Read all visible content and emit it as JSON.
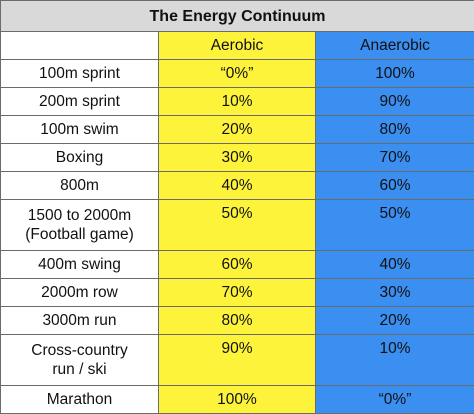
{
  "title": "The Energy Continuum",
  "columns": [
    "",
    "Aerobic",
    "Anaerobic"
  ],
  "colors": {
    "title_bg": "#d9d9d9",
    "aerobic_bg": "#fdf33b",
    "anaerobic_bg": "#3b8ff0",
    "label_bg": "#ffffff",
    "border": "#6b6b6b"
  },
  "rows": [
    {
      "activity": "100m sprint",
      "aerobic": "“0%”",
      "anaerobic": "100%"
    },
    {
      "activity": "200m sprint",
      "aerobic": "10%",
      "anaerobic": "90%"
    },
    {
      "activity": "100m swim",
      "aerobic": "20%",
      "anaerobic": "80%"
    },
    {
      "activity": "Boxing",
      "aerobic": "30%",
      "anaerobic": "70%"
    },
    {
      "activity": "800m",
      "aerobic": "40%",
      "anaerobic": "60%"
    },
    {
      "activity": "1500 to 2000m",
      "activity_line2": "(Football game)",
      "aerobic": "50%",
      "anaerobic": "50%"
    },
    {
      "activity": "400m swing",
      "aerobic": "60%",
      "anaerobic": "40%"
    },
    {
      "activity": "2000m row",
      "aerobic": "70%",
      "anaerobic": "30%"
    },
    {
      "activity": "3000m run",
      "aerobic": "80%",
      "anaerobic": "20%"
    },
    {
      "activity": "Cross-country",
      "activity_line2": "run / ski",
      "aerobic": "90%",
      "anaerobic": "10%"
    },
    {
      "activity": "Marathon",
      "aerobic": "100%",
      "anaerobic": "“0%”"
    }
  ]
}
